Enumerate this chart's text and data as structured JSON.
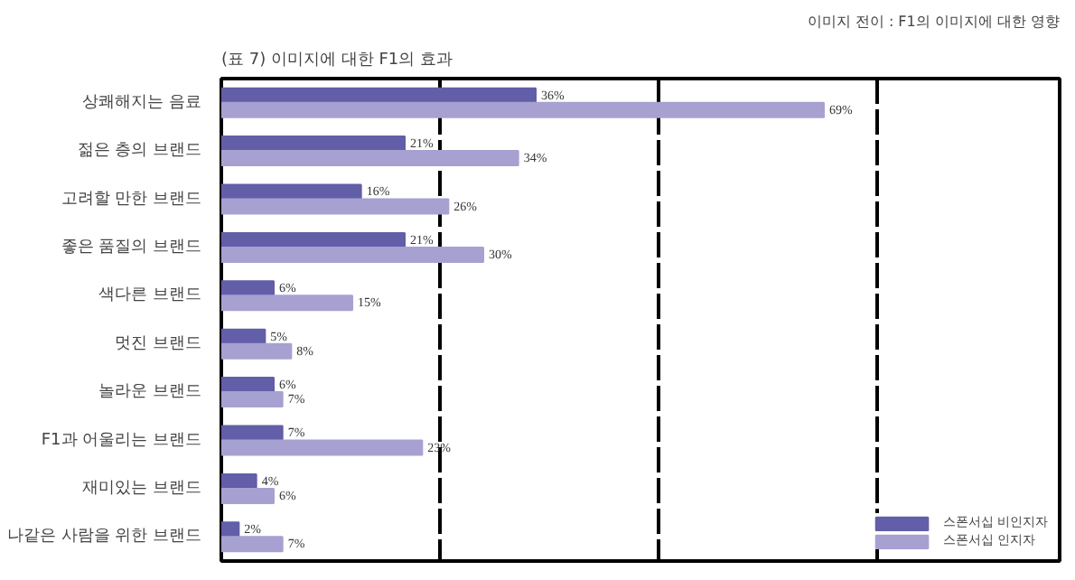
{
  "chart_data": {
    "type": "bar",
    "orientation": "horizontal",
    "title": "(표 7) 이미지에 대한 F1의 효과",
    "subtitle": "이미지 전이 : F1의 이미지에 대한 영향",
    "categories": [
      "상쾌해지는 음료",
      "젊은 층의 브랜드",
      "고려할 만한 브랜드",
      "좋은 품질의 브랜드",
      "색다른 브랜드",
      "멋진 브랜드",
      "놀라운 브랜드",
      "F1과 어울리는 브랜드",
      "재미있는 브랜드",
      "나같은 사람을 위한 브랜드"
    ],
    "series": [
      {
        "name": "스폰서십 비인지자",
        "color": "#625ea8",
        "values": [
          36,
          21,
          16,
          21,
          6,
          5,
          6,
          7,
          4,
          2
        ],
        "value_labels": [
          "36%",
          "21%",
          "16%",
          "21%",
          "6%",
          "5%",
          "6%",
          "7%",
          "4%",
          "2%"
        ]
      },
      {
        "name": "스폰서십 인지자",
        "color": "#a7a1d1",
        "values": [
          69,
          34,
          26,
          30,
          15,
          8,
          7,
          23,
          6,
          7
        ],
        "value_labels": [
          "69%",
          "34%",
          "26%",
          "30%",
          "15%",
          "8%",
          "7%",
          "23%",
          "6%",
          "7%"
        ]
      }
    ],
    "xlim": [
      0,
      96
    ],
    "xticks": [
      {
        "value": 0,
        "label": null
      },
      {
        "value": 25,
        "label": null
      },
      {
        "value": 50,
        "label": null
      },
      {
        "value": 75,
        "label": null
      }
    ],
    "grid": "x",
    "tick_labels": "y",
    "legend": "bottom right"
  }
}
